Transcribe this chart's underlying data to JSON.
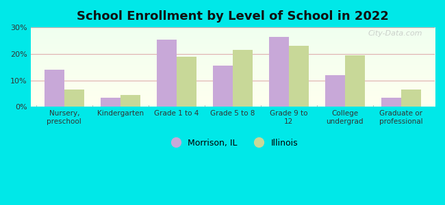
{
  "title": "School Enrollment by Level of School in 2022",
  "categories": [
    "Nursery,\npreschool",
    "Kindergarten",
    "Grade 1 to 4",
    "Grade 5 to 8",
    "Grade 9 to\n12",
    "College\nundergrad",
    "Graduate or\nprofessional"
  ],
  "morrison": [
    14,
    3.5,
    25.5,
    15.5,
    26.5,
    12,
    3.5
  ],
  "illinois": [
    6.5,
    4.5,
    19,
    21.5,
    23,
    19.5,
    6.5
  ],
  "morrison_color": "#c8a8d8",
  "illinois_color": "#c8d898",
  "bg_color": "#00e8e8",
  "ylim": [
    0,
    30
  ],
  "yticks": [
    0,
    10,
    20,
    30
  ],
  "ytick_labels": [
    "0%",
    "10%",
    "20%",
    "30%"
  ],
  "bar_width": 0.35,
  "legend_labels": [
    "Morrison, IL",
    "Illinois"
  ],
  "watermark": "City-Data.com",
  "grid_color": "#dddddd",
  "plot_bg_colors": [
    "#f5fff5",
    "#fffff0"
  ]
}
